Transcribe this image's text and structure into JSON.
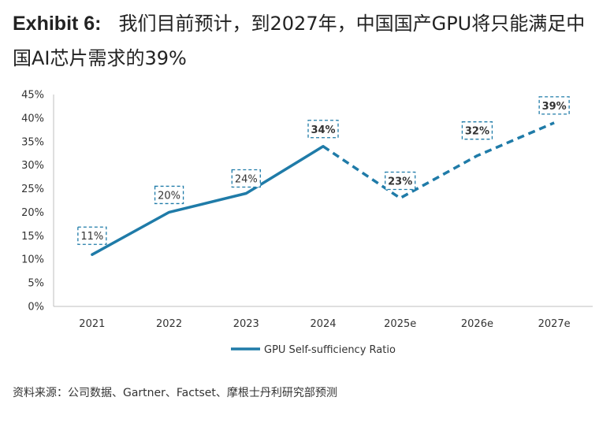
{
  "header": {
    "exhibit": "Exhibit 6:",
    "title": "我们目前预计，到2027年，中国国产GPU将只能满足中国AI芯片需求的39%"
  },
  "source": "资料来源：公司数据、Gartner、Factset、摩根士丹利研究部预测",
  "colors": {
    "line": "#1f7ba8",
    "label_box": "#1f7ba8",
    "axis": "#bfbfbf",
    "text": "#333333"
  },
  "chart_data": {
    "type": "line",
    "categories": [
      "2021",
      "2022",
      "2023",
      "2024",
      "2025e",
      "2026e",
      "2027e"
    ],
    "series": [
      {
        "name": "GPU Self-sufficiency Ratio",
        "values": [
          11,
          20,
          24,
          34,
          23,
          32,
          39
        ],
        "style": "solid through 2024, dashed for forecast years"
      }
    ],
    "data_labels": [
      "11%",
      "20%",
      "24%",
      "34%",
      "23%",
      "32%",
      "39%"
    ],
    "y_ticks": [
      "0%",
      "5%",
      "10%",
      "15%",
      "20%",
      "25%",
      "30%",
      "35%",
      "40%",
      "45%"
    ],
    "ylim": [
      0,
      45
    ],
    "legend_position": "bottom-center",
    "grid": false
  }
}
